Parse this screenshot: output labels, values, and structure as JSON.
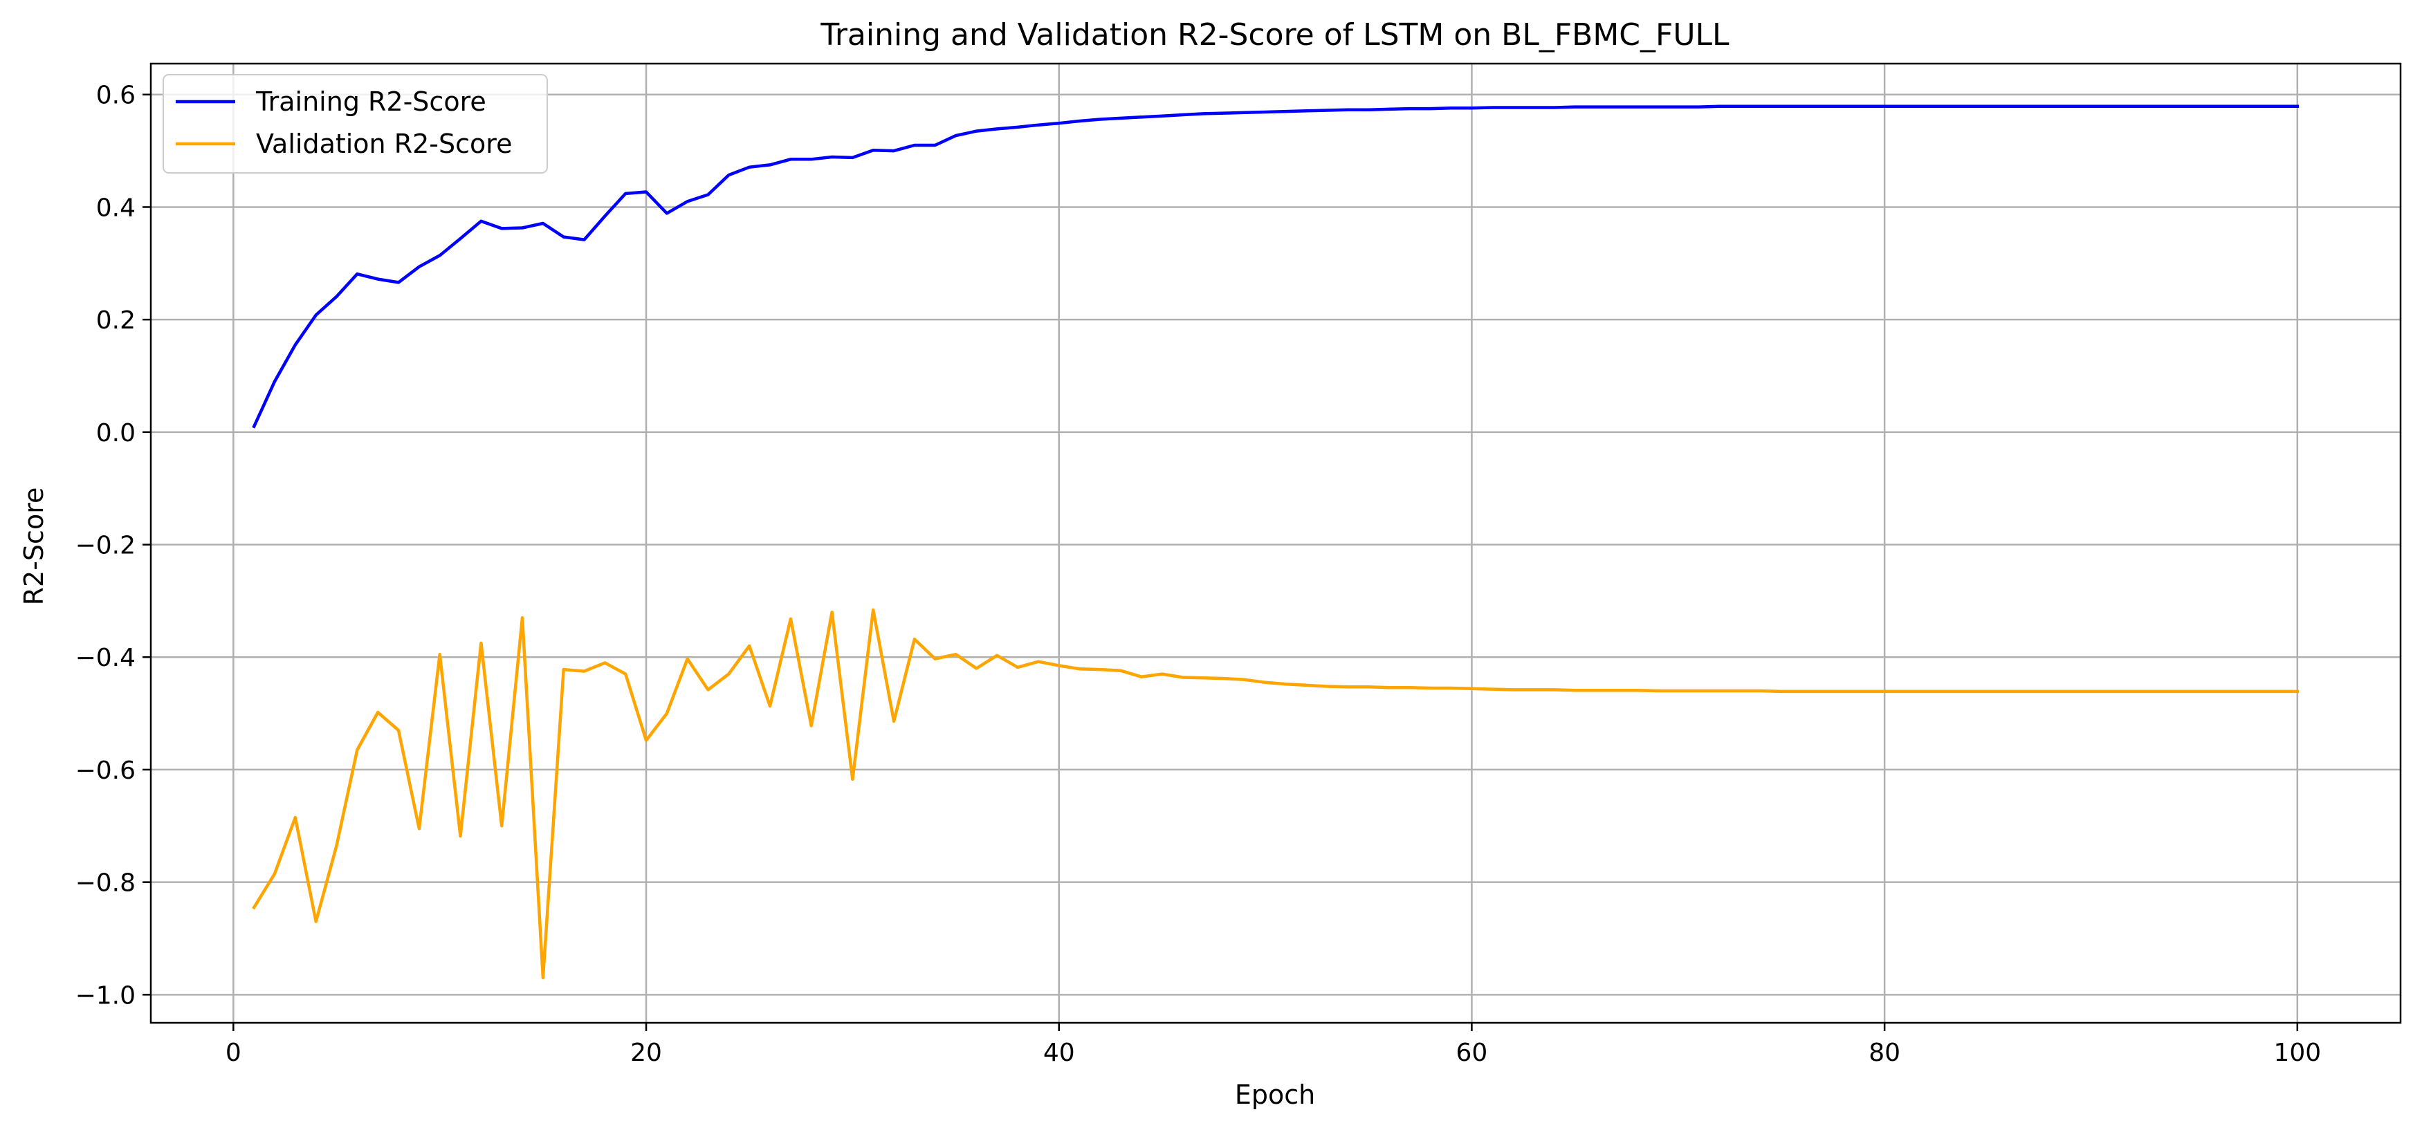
{
  "chart_data": {
    "type": "line",
    "title": "Training and Validation R2-Score of LSTM on BL_FBMC_FULL",
    "xlabel": "Epoch",
    "ylabel": "R2-Score",
    "xlim": [
      -4,
      105
    ],
    "ylim": [
      -1.05,
      0.655
    ],
    "xticks": [
      0,
      20,
      40,
      60,
      80,
      100
    ],
    "yticks": [
      -1.0,
      -0.8,
      -0.6,
      -0.4,
      -0.2,
      0.0,
      0.2,
      0.4,
      0.6
    ],
    "xtick_labels": [
      "0",
      "20",
      "40",
      "60",
      "80",
      "100"
    ],
    "ytick_labels": [
      "−1.0",
      "−0.8",
      "−0.6",
      "−0.4",
      "−0.2",
      "0.0",
      "0.2",
      "0.4",
      "0.6"
    ],
    "grid": true,
    "legend_position": "top-left",
    "x_start": 1,
    "series": [
      {
        "name": "Training R2-Score",
        "color": "#0000ff",
        "values": [
          0.01,
          0.09,
          0.155,
          0.208,
          0.241,
          0.281,
          0.272,
          0.266,
          0.294,
          0.314,
          0.344,
          0.375,
          0.362,
          0.363,
          0.371,
          0.347,
          0.342,
          0.384,
          0.424,
          0.427,
          0.389,
          0.41,
          0.422,
          0.457,
          0.471,
          0.475,
          0.485,
          0.485,
          0.489,
          0.488,
          0.501,
          0.5,
          0.51,
          0.51,
          0.527,
          0.535,
          0.539,
          0.542,
          0.546,
          0.549,
          0.553,
          0.556,
          0.558,
          0.56,
          0.562,
          0.564,
          0.566,
          0.567,
          0.568,
          0.569,
          0.57,
          0.571,
          0.572,
          0.573,
          0.573,
          0.574,
          0.575,
          0.575,
          0.576,
          0.576,
          0.577,
          0.577,
          0.577,
          0.577,
          0.578,
          0.578,
          0.578,
          0.578,
          0.578,
          0.578,
          0.578,
          0.579,
          0.579,
          0.579,
          0.579,
          0.579,
          0.579,
          0.579,
          0.579,
          0.579,
          0.579,
          0.579,
          0.579,
          0.579,
          0.579,
          0.579,
          0.579,
          0.579,
          0.579,
          0.579,
          0.579,
          0.579,
          0.579,
          0.579,
          0.579,
          0.579,
          0.579,
          0.579,
          0.579,
          0.579
        ]
      },
      {
        "name": "Validation R2-Score",
        "color": "#ffa500",
        "values": [
          -0.845,
          -0.785,
          -0.685,
          -0.87,
          -0.735,
          -0.565,
          -0.498,
          -0.53,
          -0.705,
          -0.395,
          -0.718,
          -0.375,
          -0.7,
          -0.33,
          -0.97,
          -0.422,
          -0.425,
          -0.41,
          -0.43,
          -0.548,
          -0.5,
          -0.403,
          -0.458,
          -0.43,
          -0.38,
          -0.487,
          -0.332,
          -0.522,
          -0.32,
          -0.617,
          -0.316,
          -0.514,
          -0.368,
          -0.403,
          -0.395,
          -0.42,
          -0.397,
          -0.418,
          -0.408,
          -0.415,
          -0.421,
          -0.422,
          -0.424,
          -0.435,
          -0.43,
          -0.436,
          -0.437,
          -0.438,
          -0.44,
          -0.445,
          -0.448,
          -0.45,
          -0.452,
          -0.453,
          -0.453,
          -0.454,
          -0.454,
          -0.455,
          -0.455,
          -0.456,
          -0.457,
          -0.458,
          -0.458,
          -0.458,
          -0.459,
          -0.459,
          -0.459,
          -0.459,
          -0.46,
          -0.46,
          -0.46,
          -0.46,
          -0.46,
          -0.46,
          -0.461,
          -0.461,
          -0.461,
          -0.461,
          -0.461,
          -0.461,
          -0.461,
          -0.461,
          -0.461,
          -0.461,
          -0.461,
          -0.461,
          -0.461,
          -0.461,
          -0.461,
          -0.461,
          -0.461,
          -0.461,
          -0.461,
          -0.461,
          -0.461,
          -0.461,
          -0.461,
          -0.461,
          -0.461,
          -0.461
        ]
      }
    ]
  }
}
